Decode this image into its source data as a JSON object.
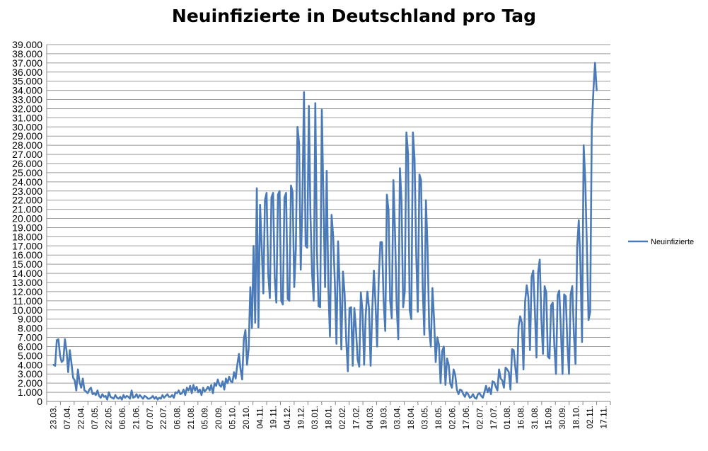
{
  "chart_data": {
    "type": "line",
    "title": "Neuinfizierte in Deutschland pro Tag",
    "xlabel": "",
    "ylabel": "",
    "ylim": [
      0,
      39000
    ],
    "grid": true,
    "legend_position": "right",
    "colors": {
      "series": "#4a7ab8",
      "grid": "#9a9a9a",
      "axis": "#868686"
    },
    "y_ticks": [
      "0",
      "1.000",
      "2.000",
      "3.000",
      "4.000",
      "5.000",
      "6.000",
      "7.000",
      "8.000",
      "9.000",
      "10.000",
      "11.000",
      "12.000",
      "13.000",
      "14.000",
      "15.000",
      "16.000",
      "17.000",
      "18.000",
      "19.000",
      "20.000",
      "21.000",
      "22.000",
      "23.000",
      "24.000",
      "25.000",
      "26.000",
      "27.000",
      "28.000",
      "29.000",
      "30.000",
      "31.000",
      "32.000",
      "33.000",
      "34.000",
      "35.000",
      "36.000",
      "37.000",
      "38.000",
      "39.000"
    ],
    "x_ticks": [
      "23.03.",
      "07.04.",
      "22.04.",
      "07.05.",
      "22.05.",
      "06.06.",
      "21.06.",
      "07.07.",
      "22.07.",
      "06.08.",
      "21.08.",
      "05.09.",
      "20.09.",
      "05.10.",
      "20.10.",
      "04.11.",
      "19.11.",
      "04.12.",
      "19.12.",
      "03.01.",
      "18.01.",
      "02.02.",
      "17.02.",
      "04.03.",
      "19.03.",
      "03.04.",
      "18.04.",
      "03.05.",
      "18.05.",
      "02.06.",
      "17.06.",
      "02.07.",
      "17.07.",
      "01.08.",
      "16.08.",
      "31.08.",
      "15.09.",
      "30.09.",
      "18.10.",
      "02.11.",
      "17.11."
    ],
    "series": [
      {
        "name": "Neuinfizierte",
        "x_start_index": 0,
        "x_end_index": 39.5,
        "values": [
          4000,
          3900,
          6700,
          6800,
          5000,
          4300,
          4500,
          6800,
          5500,
          3200,
          5600,
          4200,
          2600,
          2300,
          1200,
          3500,
          2100,
          1500,
          2500,
          1200,
          1100,
          900,
          1300,
          1500,
          800,
          900,
          700,
          1200,
          600,
          400,
          800,
          500,
          600,
          200,
          1000,
          500,
          400,
          300,
          700,
          400,
          300,
          500,
          200,
          700,
          400,
          600,
          500,
          300,
          1200,
          400,
          500,
          800,
          400,
          700,
          500,
          300,
          600,
          500,
          300,
          300,
          400,
          600,
          300,
          500,
          200,
          400,
          300,
          700,
          400,
          600,
          800,
          500,
          500,
          700,
          400,
          1000,
          900,
          1200,
          800,
          900,
          1300,
          700,
          1500,
          1200,
          1700,
          900,
          1800,
          1200,
          1600,
          1000,
          1300,
          700,
          1500,
          1100,
          1300,
          1600,
          1200,
          1800,
          900,
          2000,
          1700,
          2400,
          1800,
          1600,
          2200,
          1300,
          2500,
          2000,
          2700,
          2200,
          2100,
          3200,
          2500,
          4000,
          5200,
          3500,
          2400,
          6800,
          7800,
          4000,
          5800,
          12500,
          8000,
          17000,
          8600,
          23300,
          8100,
          21500,
          16900,
          11800,
          22000,
          22800,
          14000,
          11300,
          22300,
          22800,
          13500,
          10800,
          22600,
          23000,
          11000,
          10600,
          22300,
          22800,
          11200,
          11000,
          23600,
          22900,
          12500,
          16700,
          30000,
          28200,
          14400,
          21800,
          33800,
          17000,
          16800,
          32300,
          20500,
          14000,
          11000,
          32600,
          16600,
          10400,
          10300,
          31900,
          22000,
          12500,
          25200,
          12500,
          7100,
          20400,
          18000,
          13000,
          6300,
          17500,
          12500,
          5700,
          14200,
          11800,
          6700,
          3300,
          10200,
          10300,
          3900,
          10200,
          7900,
          4600,
          3800,
          11900,
          9900,
          4000,
          9500,
          12000,
          10200,
          3900,
          10000,
          14300,
          10700,
          6000,
          13500,
          17400,
          17400,
          10900,
          7700,
          22600,
          20900,
          11000,
          9100,
          24200,
          18500,
          10500,
          6800,
          25500,
          21900,
          10300,
          12000,
          29400,
          27100,
          10000,
          9000,
          29400,
          26500,
          16400,
          9800,
          24800,
          24200,
          12500,
          7300,
          22000,
          16700,
          8000,
          6000,
          12400,
          9000,
          4300,
          7000,
          6200,
          2000,
          5500,
          6000,
          1800,
          4700,
          4000,
          1900,
          1500,
          3500,
          2900,
          1300,
          800,
          1300,
          1200,
          800,
          500,
          1000,
          800,
          400,
          500,
          800,
          400,
          300,
          800,
          900,
          600,
          400,
          1000,
          1700,
          1000,
          1500,
          800,
          2200,
          2100,
          1600,
          1200,
          3500,
          2500,
          2300,
          1500,
          3700,
          3500,
          3200,
          1300,
          5700,
          5600,
          3700,
          2100,
          8200,
          9300,
          8600,
          3500,
          10900,
          12700,
          11400,
          5600,
          13600,
          14300,
          10000,
          4800,
          14100,
          15500,
          9000,
          5200,
          12600,
          11900,
          4900,
          4700,
          10500,
          10800,
          6100,
          3000,
          11600,
          12100,
          7900,
          3000,
          11700,
          11500,
          6200,
          3000,
          11700,
          12600,
          7400,
          4100,
          16900,
          19800,
          15000,
          6500,
          28000,
          24100,
          16700,
          8900,
          9800,
          30000,
          34000,
          37000,
          34000
        ]
      }
    ]
  }
}
